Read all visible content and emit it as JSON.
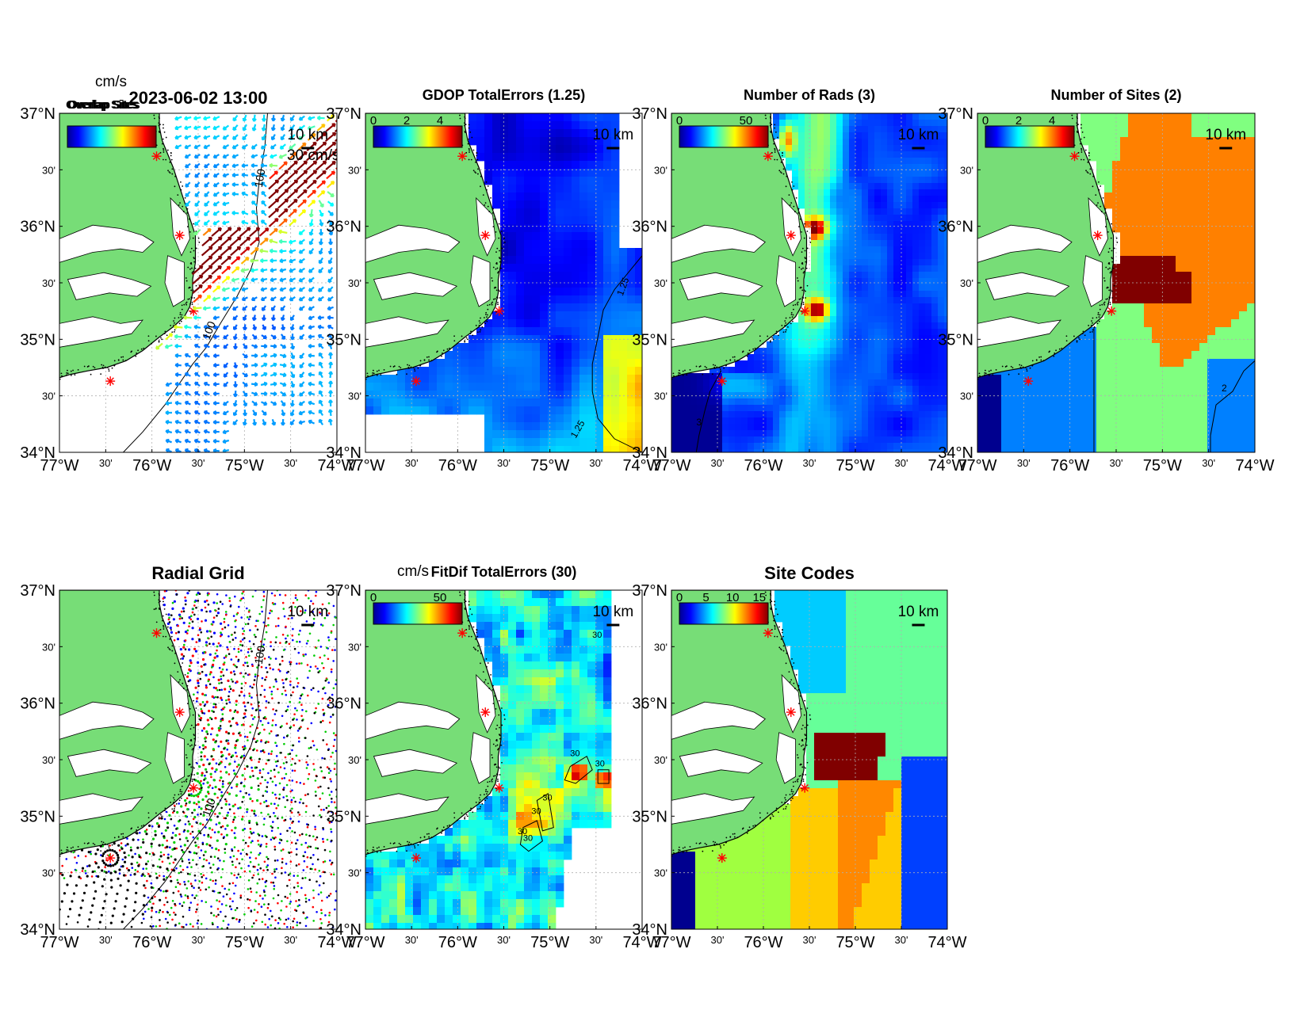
{
  "figure": {
    "timestamp": "2023-06-02 13:00",
    "colorbar_unit": "cm/s",
    "overlap_text": "Overlap Sites",
    "scale_km": "10 km",
    "vector_scale": "30 cm/s",
    "contour_100": "100",
    "lat_labels": [
      "37°N",
      "30'",
      "36°N",
      "30'",
      "35°N",
      "30'",
      "34°N"
    ],
    "lon_labels": [
      "77°W",
      "30'",
      "76°W",
      "30'",
      "75°W",
      "30'",
      "74°W"
    ],
    "colors": {
      "land": "#77dd77",
      "site_marker": "#ff0000",
      "coast": "#000000"
    }
  },
  "chart_data": [
    {
      "type": "heatmap",
      "panel": "total-currents",
      "title": "",
      "colorbar_unit": "cm/s",
      "overlap_text": "Overlap Sites",
      "vector_scale": "30 cm/s",
      "scale_km": "10 km",
      "colorbar_ticks": [],
      "xlim": [
        -77,
        -74
      ],
      "ylim": [
        34,
        37
      ],
      "sites": [
        {
          "lon": -75.95,
          "lat": 36.62
        },
        {
          "lon": -75.7,
          "lat": 35.92
        },
        {
          "lon": -75.55,
          "lat": 35.25
        },
        {
          "lon": -76.45,
          "lat": 34.63
        }
      ]
    },
    {
      "type": "heatmap",
      "panel": "gdop",
      "title": "GDOP TotalErrors (1.25)",
      "colorbar_ticks": [
        "0",
        "2",
        "4"
      ],
      "contour_label": "1.25",
      "scale_km": "10 km",
      "xlim": [
        -77,
        -74
      ],
      "ylim": [
        34,
        37
      ]
    },
    {
      "type": "heatmap",
      "panel": "num-rads",
      "title": "Number of Rads (3)",
      "colorbar_ticks": [
        "0",
        "50"
      ],
      "contour_label": "3",
      "scale_km": "10 km",
      "xlim": [
        -77,
        -74
      ],
      "ylim": [
        34,
        37
      ]
    },
    {
      "type": "heatmap",
      "panel": "num-sites",
      "title": "Number of Sites (2)",
      "colorbar_ticks": [
        "0",
        "2",
        "4"
      ],
      "contour_label": "2",
      "scale_km": "10 km",
      "xlim": [
        -77,
        -74
      ],
      "ylim": [
        34,
        37
      ]
    },
    {
      "type": "scatter",
      "panel": "radial-grid",
      "title": "Radial Grid",
      "scale_km": "10 km",
      "contour_label": "100",
      "xlim": [
        -77,
        -74
      ],
      "ylim": [
        34,
        37
      ],
      "series_colors": [
        "#0000ff",
        "#ff0000",
        "#00cc00",
        "#000000"
      ]
    },
    {
      "type": "heatmap",
      "panel": "fitdif",
      "title": "FitDif TotalErrors (30)",
      "colorbar_unit": "cm/s",
      "colorbar_ticks": [
        "0",
        "50"
      ],
      "contour_label": "30",
      "scale_km": "10 km",
      "xlim": [
        -77,
        -74
      ],
      "ylim": [
        34,
        37
      ]
    },
    {
      "type": "heatmap",
      "panel": "site-codes",
      "title": "Site Codes",
      "colorbar_ticks": [
        "0",
        "5",
        "10",
        "15"
      ],
      "scale_km": "10 km",
      "xlim": [
        -77,
        -74
      ],
      "ylim": [
        34,
        37
      ]
    }
  ]
}
